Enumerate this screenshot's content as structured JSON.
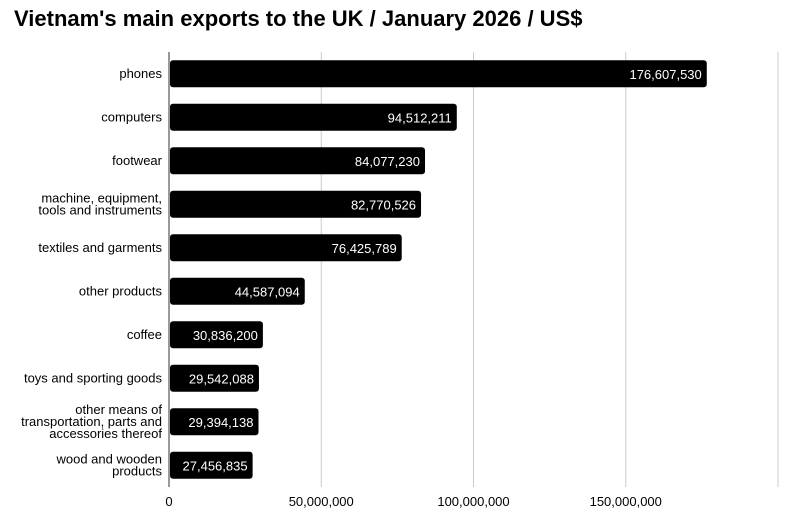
{
  "chart_data": {
    "type": "bar",
    "orientation": "horizontal",
    "title": "Vietnam's main exports to the UK / January 2026 / US$",
    "xlabel": "",
    "ylabel": "",
    "xlim": [
      0,
      200000000
    ],
    "x_ticks": [
      0,
      50000000,
      100000000,
      150000000
    ],
    "x_tick_labels": [
      "0",
      "50,000,000",
      "100,000,000",
      "150,000,000"
    ],
    "grid": true,
    "legend": "none",
    "bar_color": "#000000",
    "label_color": "#ffffff",
    "categories": [
      [
        "phones"
      ],
      [
        "computers"
      ],
      [
        "footwear"
      ],
      [
        "machine, equipment,",
        "tools and instruments"
      ],
      [
        "textiles and garments"
      ],
      [
        "other products"
      ],
      [
        "coffee"
      ],
      [
        "toys and sporting goods"
      ],
      [
        "other means of",
        "transportation, parts and",
        "accessories thereof"
      ],
      [
        "wood and wooden",
        "products"
      ]
    ],
    "values": [
      176607530,
      94512211,
      84077230,
      82770526,
      76425789,
      44587094,
      30836200,
      29542088,
      29394138,
      27456835
    ],
    "value_labels": [
      "176,607,530",
      "94,512,211",
      "84,077,230",
      "82,770,526",
      "76,425,789",
      "44,587,094",
      "30,836,200",
      "29,542,088",
      "29,394,138",
      "27,456,835"
    ]
  }
}
